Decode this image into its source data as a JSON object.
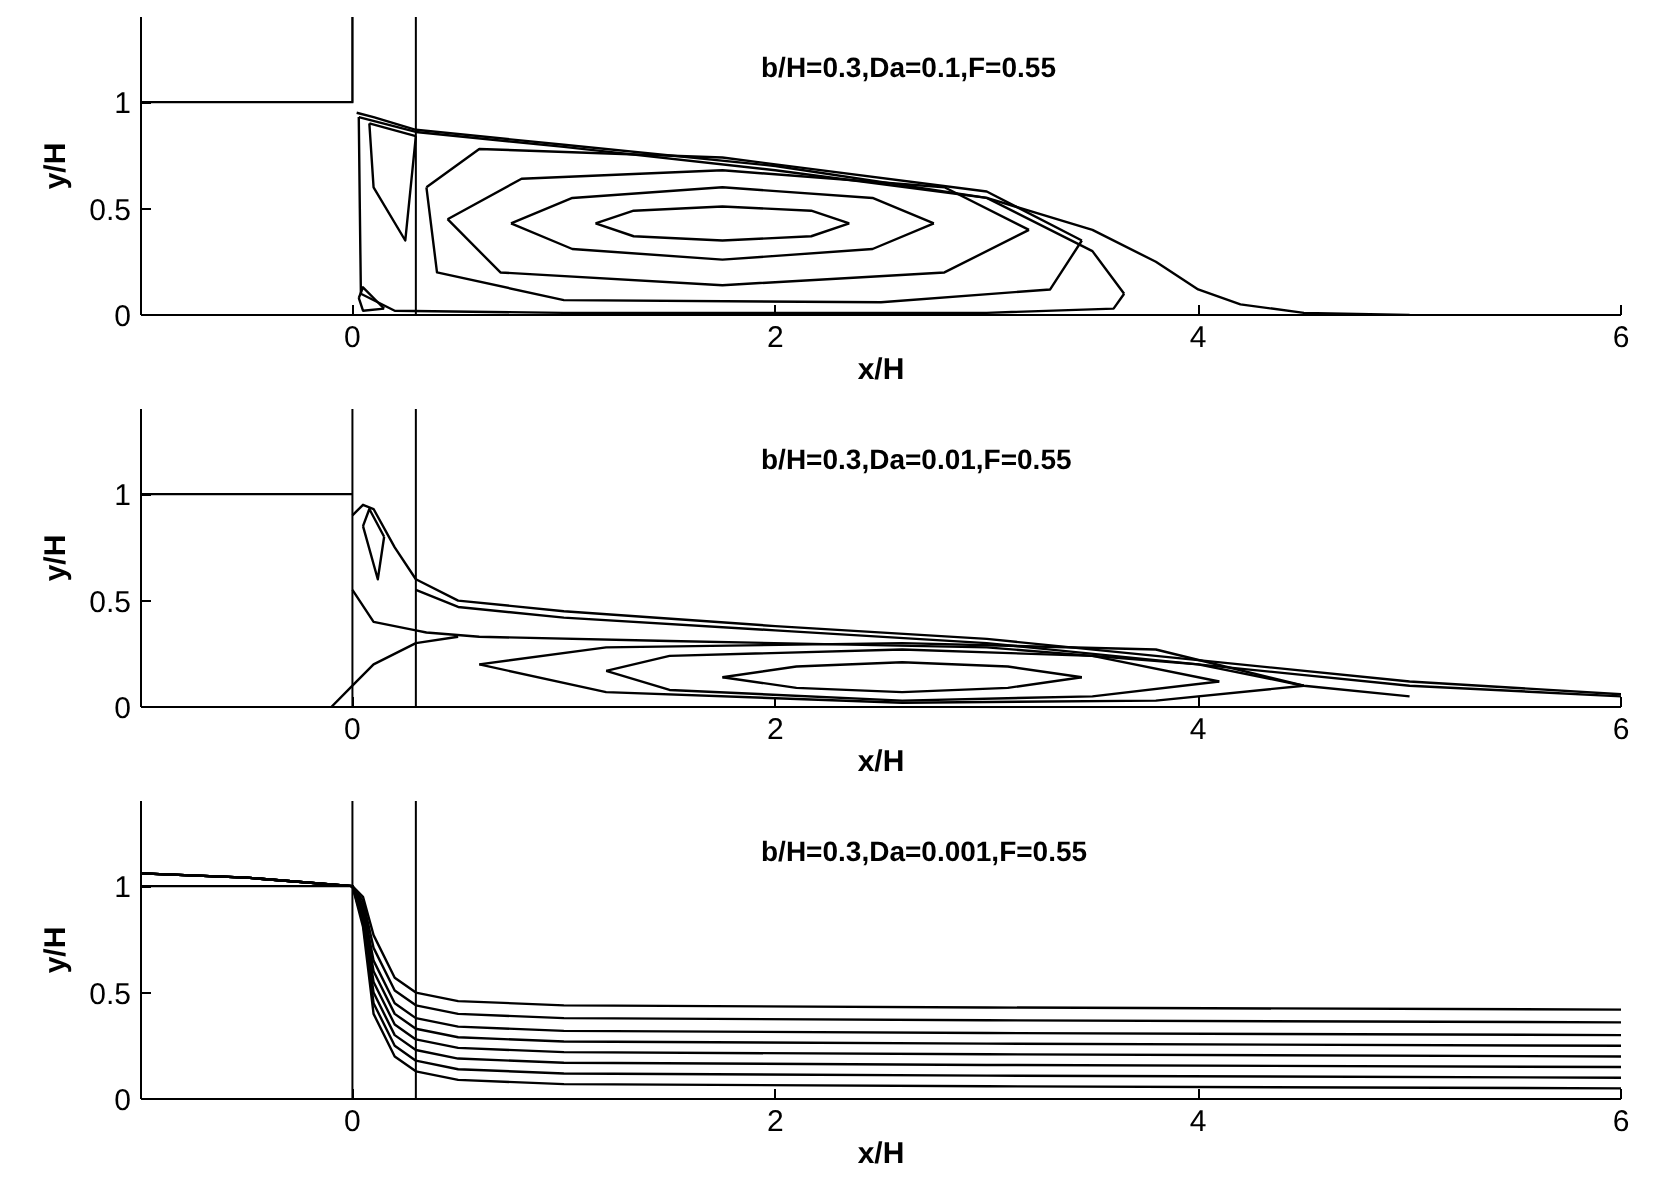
{
  "chart_data": [
    {
      "type": "line",
      "xlabel": "x/H",
      "ylabel": "y/H",
      "annotations": [
        "b/H=0.3,Da=0.1,F=0.55"
      ],
      "xlim": [
        -1,
        6
      ],
      "ylim": [
        0,
        1.4
      ],
      "xticks": [
        0,
        2,
        4,
        6
      ],
      "yticks": [
        0,
        0.5,
        1
      ],
      "grid": false,
      "marker": "none",
      "line_style": "solid",
      "ref_lines": [
        {
          "axis": "x",
          "value": 0.3,
          "color": "#000000"
        }
      ],
      "series": [
        {
          "color": "#000000",
          "x": [
            -1,
            0,
            0
          ],
          "values": [
            1,
            1,
            1.4
          ]
        },
        {
          "color": "#000000",
          "x": [
            0.02,
            0.1,
            0.3,
            1,
            2,
            3,
            3.5,
            3.8,
            4,
            4.2,
            4.5,
            5
          ],
          "values": [
            0.95,
            0.93,
            0.87,
            0.8,
            0.7,
            0.55,
            0.4,
            0.25,
            0.12,
            0.05,
            0.01,
            0
          ]
        },
        {
          "color": "#000000",
          "x": [
            0.03,
            0.3,
            1,
            2,
            3,
            3.5,
            3.65
          ],
          "values": [
            0.93,
            0.86,
            0.79,
            0.68,
            0.55,
            0.3,
            0.1
          ]
        },
        {
          "color": "#000000",
          "x": [
            0.03,
            0.035,
            0.04,
            0.2,
            1,
            2,
            3,
            3.6,
            3.65
          ],
          "values": [
            0.93,
            0.5,
            0.1,
            0.02,
            0.01,
            0.01,
            0.01,
            0.03,
            0.1
          ]
        },
        {
          "color": "#000000",
          "x": [
            0.08,
            0.3
          ],
          "values": [
            0.9,
            0.84
          ]
        },
        {
          "color": "#000000",
          "x": [
            0.08,
            0.1,
            0.25,
            0.3
          ],
          "values": [
            0.9,
            0.6,
            0.35,
            0.84
          ]
        },
        {
          "color": "#000000",
          "x": [
            0.35,
            0.6,
            1.75,
            3,
            3.45
          ],
          "values": [
            0.6,
            0.78,
            0.74,
            0.58,
            0.35
          ]
        },
        {
          "color": "#000000",
          "x": [
            0.35,
            0.4,
            1,
            2.5,
            3.3,
            3.45
          ],
          "values": [
            0.6,
            0.2,
            0.07,
            0.06,
            0.12,
            0.35
          ]
        },
        {
          "color": "#000000",
          "x": [
            0.45,
            0.8,
            1.75,
            2.8,
            3.2
          ],
          "values": [
            0.45,
            0.64,
            0.68,
            0.6,
            0.4
          ]
        },
        {
          "color": "#000000",
          "x": [
            0.45,
            0.7,
            1.75,
            2.8,
            3.2
          ],
          "values": [
            0.45,
            0.2,
            0.14,
            0.2,
            0.4
          ]
        },
        {
          "color": "#000000",
          "x": [
            0.75,
            1.04,
            1.75,
            2.46,
            2.75
          ],
          "values": [
            0.43,
            0.55,
            0.6,
            0.55,
            0.43
          ]
        },
        {
          "color": "#000000",
          "x": [
            0.75,
            1.04,
            1.75,
            2.46,
            2.75
          ],
          "values": [
            0.43,
            0.31,
            0.26,
            0.31,
            0.43
          ]
        },
        {
          "color": "#000000",
          "x": [
            1.15,
            1.33,
            1.75,
            2.17,
            2.35
          ],
          "values": [
            0.43,
            0.49,
            0.51,
            0.49,
            0.43
          ]
        },
        {
          "color": "#000000",
          "x": [
            1.15,
            1.33,
            1.75,
            2.17,
            2.35
          ],
          "values": [
            0.43,
            0.37,
            0.35,
            0.37,
            0.43
          ]
        },
        {
          "color": "#000000",
          "x": [
            0.03,
            0.05,
            0.12,
            0.15
          ],
          "values": [
            0.08,
            0.13,
            0.06,
            0.03
          ]
        },
        {
          "color": "#000000",
          "x": [
            0.03,
            0.05,
            0.15
          ],
          "values": [
            0.08,
            0.02,
            0.03
          ]
        }
      ]
    },
    {
      "type": "line",
      "xlabel": "x/H",
      "ylabel": "y/H",
      "annotations": [
        "b/H=0.3,Da=0.01,F=0.55"
      ],
      "xlim": [
        -1,
        6
      ],
      "ylim": [
        0,
        1.4
      ],
      "xticks": [
        0,
        2,
        4,
        6
      ],
      "yticks": [
        0,
        0.5,
        1
      ],
      "grid": false,
      "marker": "none",
      "line_style": "solid",
      "ref_lines": [
        {
          "axis": "x",
          "value": 0,
          "color": "#000000"
        },
        {
          "axis": "x",
          "value": 0.3,
          "color": "#000000"
        }
      ],
      "series": [
        {
          "color": "#000000",
          "x": [
            -1,
            0
          ],
          "values": [
            1,
            1
          ]
        },
        {
          "color": "#000000",
          "x": [
            0,
            0.05,
            0.1,
            0.2,
            0.3,
            0.5,
            1,
            2,
            3,
            4,
            5,
            6
          ],
          "values": [
            0.9,
            0.95,
            0.93,
            0.75,
            0.6,
            0.5,
            0.45,
            0.38,
            0.32,
            0.22,
            0.12,
            0.06
          ]
        },
        {
          "color": "#000000",
          "x": [
            0.3,
            0.5,
            1,
            2,
            3,
            4,
            5,
            6
          ],
          "values": [
            0.55,
            0.47,
            0.42,
            0.36,
            0.3,
            0.2,
            0.1,
            0.05
          ]
        },
        {
          "color": "#000000",
          "x": [
            0.05,
            0.08,
            0.15
          ],
          "values": [
            0.85,
            0.93,
            0.8
          ]
        },
        {
          "color": "#000000",
          "x": [
            0.05,
            0.12,
            0.15
          ],
          "values": [
            0.85,
            0.6,
            0.8
          ]
        },
        {
          "color": "#000000",
          "x": [
            0,
            0.1,
            0.3,
            0.35,
            0.6,
            1.5,
            3,
            4,
            4.5,
            5
          ],
          "values": [
            0.55,
            0.4,
            0.36,
            0.35,
            0.33,
            0.31,
            0.28,
            0.2,
            0.1,
            0.05
          ]
        },
        {
          "color": "#000000",
          "x": [
            -0.1,
            0,
            0.1,
            0.3,
            0.5
          ],
          "values": [
            0,
            0.1,
            0.2,
            0.3,
            0.33
          ]
        },
        {
          "color": "#000000",
          "x": [
            0.6,
            1.2,
            2.6,
            3.8,
            4.5
          ],
          "values": [
            0.2,
            0.28,
            0.3,
            0.27,
            0.1
          ]
        },
        {
          "color": "#000000",
          "x": [
            0.6,
            1.2,
            2.6,
            3.8,
            4.5
          ],
          "values": [
            0.2,
            0.07,
            0.02,
            0.03,
            0.1
          ]
        },
        {
          "color": "#000000",
          "x": [
            1.2,
            1.5,
            2.6,
            3.5,
            4.1
          ],
          "values": [
            0.17,
            0.24,
            0.27,
            0.24,
            0.12
          ]
        },
        {
          "color": "#000000",
          "x": [
            1.2,
            1.5,
            2.6,
            3.5,
            4.1
          ],
          "values": [
            0.17,
            0.08,
            0.03,
            0.05,
            0.12
          ]
        },
        {
          "color": "#000000",
          "x": [
            1.75,
            2.1,
            2.6,
            3.1,
            3.45
          ],
          "values": [
            0.14,
            0.19,
            0.21,
            0.19,
            0.14
          ]
        },
        {
          "color": "#000000",
          "x": [
            1.75,
            2.1,
            2.6,
            3.1,
            3.45
          ],
          "values": [
            0.14,
            0.09,
            0.07,
            0.09,
            0.14
          ]
        }
      ]
    },
    {
      "type": "line",
      "xlabel": "x/H",
      "ylabel": "y/H",
      "annotations": [
        "b/H=0.3,Da=0.001,F=0.55"
      ],
      "xlim": [
        -1,
        6
      ],
      "ylim": [
        0,
        1.4
      ],
      "xticks": [
        0,
        2,
        4,
        6
      ],
      "yticks": [
        0,
        0.5,
        1
      ],
      "grid": false,
      "marker": "none",
      "line_style": "solid",
      "ref_lines": [
        {
          "axis": "x",
          "value": 0,
          "color": "#000000"
        },
        {
          "axis": "x",
          "value": 0.3,
          "color": "#000000"
        }
      ],
      "series": [
        {
          "color": "#000000",
          "x": [
            -1,
            0
          ],
          "values": [
            1,
            1
          ]
        },
        {
          "color": "#000000",
          "x": [
            -1,
            -0.5,
            0,
            0.05,
            0.1,
            0.2,
            0.3,
            0.5,
            1,
            3,
            6
          ],
          "values": [
            1.06,
            1.04,
            1,
            0.95,
            0.77,
            0.57,
            0.5,
            0.46,
            0.44,
            0.43,
            0.42
          ]
        },
        {
          "color": "#000000",
          "x": [
            -1,
            -0.5,
            0,
            0.05,
            0.1,
            0.2,
            0.3,
            0.5,
            1,
            3,
            6
          ],
          "values": [
            1.06,
            1.04,
            1,
            0.93,
            0.71,
            0.51,
            0.44,
            0.4,
            0.38,
            0.37,
            0.36
          ]
        },
        {
          "color": "#000000",
          "x": [
            -1,
            -0.5,
            0,
            0.05,
            0.1,
            0.2,
            0.3,
            0.5,
            1,
            3,
            6
          ],
          "values": [
            1.06,
            1.04,
            1,
            0.91,
            0.65,
            0.45,
            0.38,
            0.34,
            0.32,
            0.31,
            0.3
          ]
        },
        {
          "color": "#000000",
          "x": [
            -1,
            -0.5,
            0,
            0.05,
            0.1,
            0.2,
            0.3,
            0.5,
            1,
            3,
            6
          ],
          "values": [
            1.06,
            1.04,
            1,
            0.89,
            0.6,
            0.4,
            0.33,
            0.29,
            0.27,
            0.26,
            0.25
          ]
        },
        {
          "color": "#000000",
          "x": [
            -1,
            -0.5,
            0,
            0.05,
            0.1,
            0.2,
            0.3,
            0.5,
            1,
            3,
            6
          ],
          "values": [
            1.06,
            1.04,
            1,
            0.87,
            0.55,
            0.35,
            0.28,
            0.24,
            0.22,
            0.21,
            0.2
          ]
        },
        {
          "color": "#000000",
          "x": [
            -1,
            -0.5,
            0,
            0.05,
            0.1,
            0.2,
            0.3,
            0.5,
            1,
            3,
            6
          ],
          "values": [
            1.06,
            1.04,
            1,
            0.85,
            0.5,
            0.3,
            0.23,
            0.19,
            0.17,
            0.16,
            0.15
          ]
        },
        {
          "color": "#000000",
          "x": [
            -1,
            -0.5,
            0,
            0.05,
            0.1,
            0.2,
            0.3,
            0.5,
            1,
            3,
            6
          ],
          "values": [
            1.06,
            1.04,
            1,
            0.83,
            0.45,
            0.25,
            0.18,
            0.14,
            0.12,
            0.11,
            0.1
          ]
        },
        {
          "color": "#000000",
          "x": [
            -1,
            -0.5,
            0,
            0.05,
            0.1,
            0.2,
            0.3,
            0.5,
            1,
            3,
            6
          ],
          "values": [
            1.06,
            1.04,
            1,
            0.81,
            0.4,
            0.2,
            0.13,
            0.09,
            0.07,
            0.06,
            0.05
          ]
        }
      ]
    }
  ]
}
